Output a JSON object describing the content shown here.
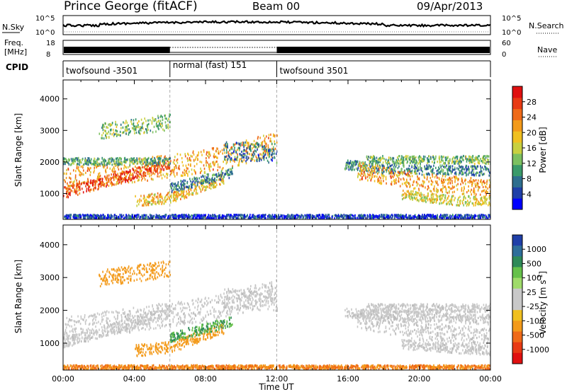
{
  "header": {
    "station": "Prince George (fitACF)",
    "beam": "Beam 00",
    "date": "09/Apr/2013"
  },
  "labels": {
    "nsky": "N.Sky",
    "nsearch": "N.Search",
    "freq_line1": "Freq.",
    "freq_line2": "[MHz]",
    "nave": "Nave",
    "cpid": "CPID"
  },
  "noise_axis": {
    "left_ticks": [
      "10^5",
      "10^0"
    ],
    "right_ticks": [
      "10^5",
      "10^0"
    ]
  },
  "freq_axis": {
    "left_ticks": [
      "18",
      "8"
    ],
    "right_ticks": [
      "60",
      "0"
    ]
  },
  "cpid_segments": [
    {
      "label": "twofsound -3501",
      "start_hour": 0,
      "end_hour": 6
    },
    {
      "label": "normal (fast) 151",
      "start_hour": 6,
      "end_hour": 12
    },
    {
      "label": "twofsound 3501",
      "start_hour": 12,
      "end_hour": 24
    }
  ],
  "power_colorbar": {
    "title": "Power [dB]",
    "ticks": [
      "28",
      "24",
      "20",
      "16",
      "12",
      "8",
      "4"
    ],
    "colors": [
      "#0000ff",
      "#1f3fa8",
      "#2e6e8e",
      "#3a9a6a",
      "#7cc060",
      "#c8d040",
      "#f0c020",
      "#f39a1a",
      "#ef6a18",
      "#e83a14",
      "#e01010"
    ]
  },
  "velocity_colorbar": {
    "title": "Velocity [m s",
    "title_sup": "-1",
    "title_end": "]",
    "ticks": [
      "1000",
      "500",
      "100",
      "25",
      "-25",
      "-100",
      "-500",
      "-1000"
    ],
    "colors": [
      "#1f3fa8",
      "#2e6e9a",
      "#2e8a58",
      "#66c14a",
      "#9fdb6a",
      "#c8c8c8",
      "#c8c8c8",
      "#f0c020",
      "#f39a1a",
      "#ef6a18",
      "#e83a14",
      "#e01010"
    ]
  },
  "chart_data": [
    {
      "type": "heatmap",
      "ylabel": "Slant Range [km]",
      "yticks": [
        1000,
        2000,
        3000,
        4000
      ],
      "ylim": [
        180,
        4600
      ],
      "xlim": [
        0,
        24
      ],
      "colorbar_label": "Power [dB]",
      "blobs": [
        {
          "x": [
            0,
            8,
            12
          ],
          "y": [
            1450,
            2050,
            2600
          ],
          "thick": 750,
          "v": 22
        },
        {
          "x": [
            0,
            3,
            6
          ],
          "y": [
            1050,
            1500,
            2000
          ],
          "thick": 350,
          "v": 27
        },
        {
          "x": [
            0,
            6
          ],
          "y": [
            2050,
            2050
          ],
          "thick": 220,
          "v": 12
        },
        {
          "x": [
            2,
            6
          ],
          "y": [
            3000,
            3300
          ],
          "thick": 500,
          "v": 14
        },
        {
          "x": [
            4,
            6,
            9
          ],
          "y": [
            800,
            900,
            1500
          ],
          "thick": 350,
          "v": 20
        },
        {
          "x": [
            6,
            9.5
          ],
          "y": [
            1200,
            1700
          ],
          "thick": 300,
          "v": 10
        },
        {
          "x": [
            9,
            12
          ],
          "y": [
            2400,
            2300
          ],
          "thick": 600,
          "v": 9
        },
        {
          "x": [
            15.8,
            18,
            24
          ],
          "y": [
            1950,
            1800,
            1750
          ],
          "thick": 300,
          "v": 10
        },
        {
          "x": [
            16.5,
            20,
            24
          ],
          "y": [
            1750,
            1400,
            1200
          ],
          "thick": 550,
          "v": 22
        },
        {
          "x": [
            17,
            24
          ],
          "y": [
            2100,
            2100
          ],
          "thick": 250,
          "v": 14
        },
        {
          "x": [
            19,
            22,
            24
          ],
          "y": [
            1000,
            800,
            800
          ],
          "thick": 300,
          "v": 18
        },
        {
          "x": [
            0,
            24
          ],
          "y": [
            300,
            300
          ],
          "thick": 120,
          "v": 6
        }
      ]
    },
    {
      "type": "heatmap",
      "ylabel": "Slant Range [km]",
      "xlabel": "Time UT",
      "yticks": [
        1000,
        2000,
        3000,
        4000
      ],
      "xticks": [
        "00:00",
        "04:00",
        "08:00",
        "12:00",
        "16:00",
        "20:00",
        "00:00"
      ],
      "xtick_hours": [
        0,
        4,
        8,
        12,
        16,
        20,
        24
      ],
      "ylim": [
        180,
        4600
      ],
      "xlim": [
        0,
        24
      ],
      "colorbar_label": "Velocity [m s-1]",
      "blobs": [
        {
          "x": [
            0,
            8,
            12
          ],
          "y": [
            1450,
            2050,
            2600
          ],
          "thick": 750,
          "v": 0
        },
        {
          "x": [
            0,
            3,
            6
          ],
          "y": [
            1050,
            1500,
            2000
          ],
          "thick": 350,
          "v": 0
        },
        {
          "x": [
            2,
            6
          ],
          "y": [
            3000,
            3300
          ],
          "thick": 500,
          "v": -150
        },
        {
          "x": [
            4,
            6,
            9
          ],
          "y": [
            800,
            900,
            1500
          ],
          "thick": 350,
          "v": -150
        },
        {
          "x": [
            6,
            9.5
          ],
          "y": [
            1200,
            1700
          ],
          "thick": 300,
          "v": 300
        },
        {
          "x": [
            9,
            12
          ],
          "y": [
            2400,
            2300
          ],
          "thick": 600,
          "v": 0
        },
        {
          "x": [
            15.8,
            24
          ],
          "y": [
            1950,
            1750
          ],
          "thick": 300,
          "v": 0
        },
        {
          "x": [
            16.5,
            20,
            24
          ],
          "y": [
            1750,
            1400,
            1200
          ],
          "thick": 550,
          "v": 0
        },
        {
          "x": [
            17,
            24
          ],
          "y": [
            2100,
            2100
          ],
          "thick": 250,
          "v": 0
        },
        {
          "x": [
            19,
            24
          ],
          "y": [
            1000,
            800
          ],
          "thick": 300,
          "v": 0
        },
        {
          "x": [
            0,
            24
          ],
          "y": [
            300,
            300
          ],
          "thick": 120,
          "v": -300
        }
      ]
    }
  ]
}
